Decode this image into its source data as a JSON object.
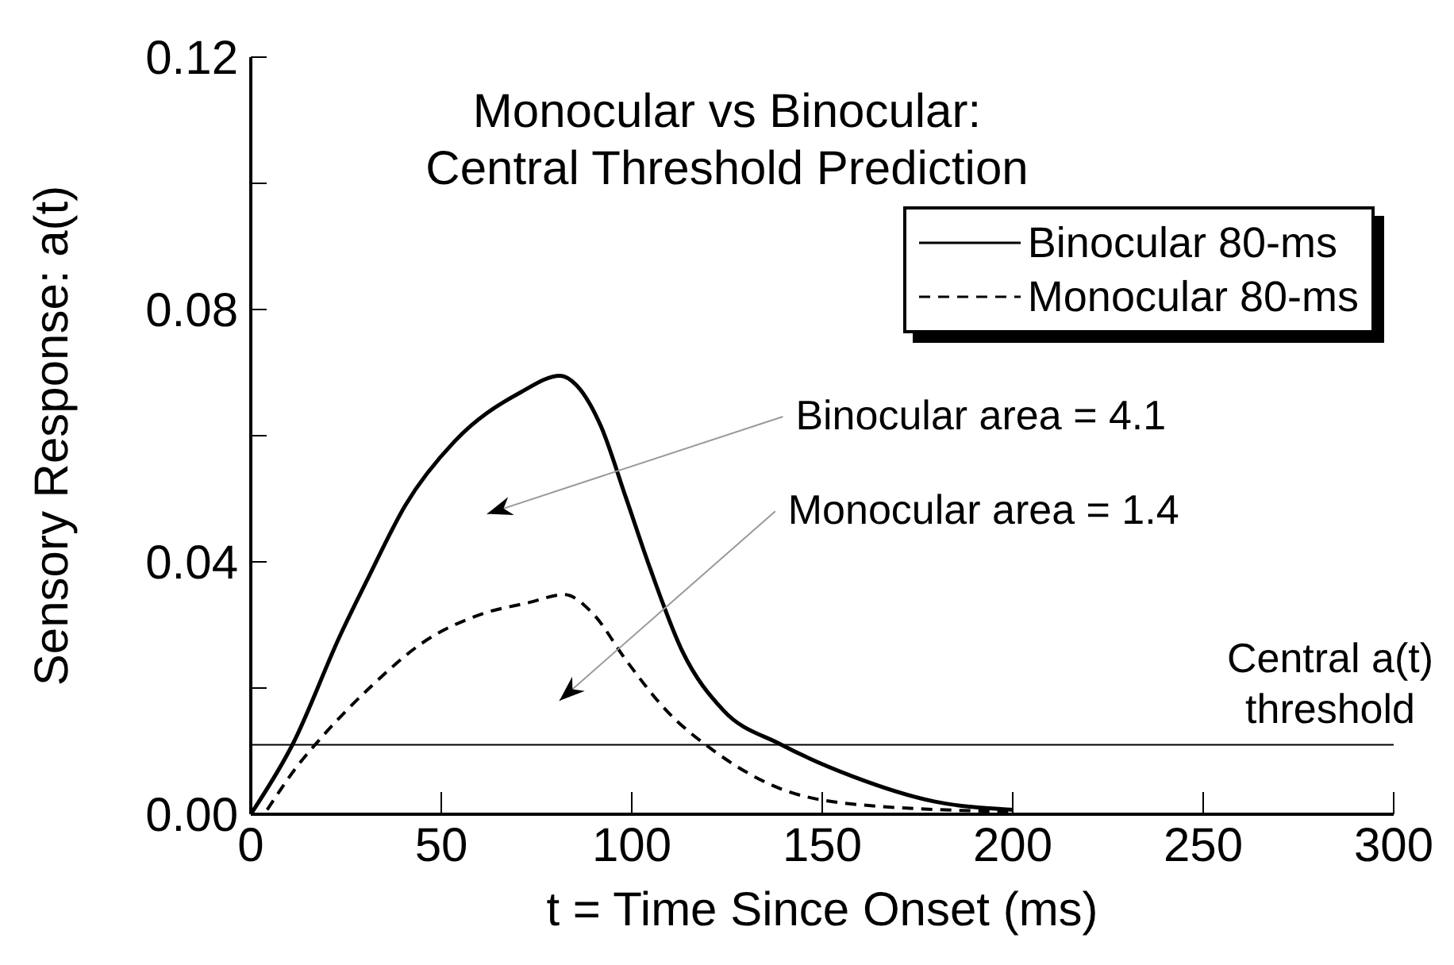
{
  "chart_data": {
    "type": "line",
    "title": "Monocular vs Binocular:\nCentral Threshold Prediction",
    "xlabel": "t = Time Since Onset (ms)",
    "ylabel": "Sensory Response: a(t)",
    "xlim": [
      0,
      300
    ],
    "xticks": [
      0,
      50,
      100,
      150,
      200,
      250,
      300
    ],
    "ylim": [
      0,
      0.12
    ],
    "yticks": [
      {
        "value": 0,
        "label": "0.00"
      },
      {
        "value": 0.02,
        "label": null
      },
      {
        "value": 0.04,
        "label": "0.04"
      },
      {
        "value": 0.06,
        "label": null
      },
      {
        "value": 0.08,
        "label": "0.08"
      },
      {
        "value": 0.1,
        "label": null
      },
      {
        "value": 0.12,
        "label": "0.12"
      }
    ],
    "grid": false,
    "legend": "top right",
    "marker": "none",
    "series": [
      {
        "name": "Binocular 80-ms",
        "color": "#000000",
        "line_style": "solid",
        "x": [
          0,
          11,
          23.5,
          31,
          40.6,
          53.5,
          70.6,
          81.2,
          85.5,
          91.9,
          98.4,
          104.8,
          113.3,
          124,
          139,
          158,
          179.6,
          200
        ],
        "values": [
          0,
          0.0111,
          0.0284,
          0.0377,
          0.049,
          0.0591,
          0.0668,
          0.0695,
          0.068,
          0.0615,
          0.0503,
          0.039,
          0.0258,
          0.0165,
          0.0111,
          0.006,
          0.002,
          0.0007
        ]
      },
      {
        "name": "Monocular 80-ms",
        "color": "#000000",
        "line_style": "dashed",
        "x": [
          4.3,
          11.8,
          19.2,
          32,
          44.9,
          61,
          72.7,
          82.3,
          89.8,
          98.4,
          109,
          121.9,
          136.8,
          158,
          198.8
        ],
        "values": [
          0.0007,
          0.0073,
          0.0126,
          0.0205,
          0.0271,
          0.0318,
          0.0335,
          0.0348,
          0.0318,
          0.0245,
          0.0165,
          0.0099,
          0.0046,
          0.0016,
          0.0004
        ]
      }
    ],
    "ref_lines": [
      {
        "axis": "y",
        "value": 0.011,
        "label": "Central a(t)\nthreshold",
        "color": "#000000"
      }
    ],
    "annotations": [
      "Binocular area = 4.1",
      "Monocular area = 1.4"
    ]
  }
}
